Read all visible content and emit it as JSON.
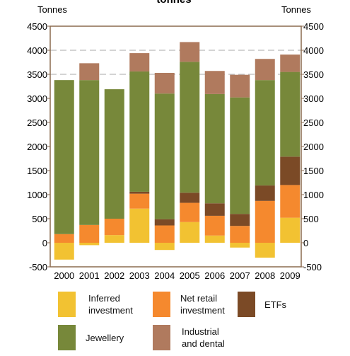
{
  "chart_data": {
    "type": "bar",
    "stacked": true,
    "title": "tonnes",
    "ylabel_left": "Tonnes",
    "ylabel_right": "Tonnes",
    "ylim": [
      -500,
      4500
    ],
    "yticks": [
      -500,
      0,
      500,
      1000,
      1500,
      2000,
      2500,
      3000,
      3500,
      4000,
      4500
    ],
    "dashed_gridlines": [
      3500,
      4000
    ],
    "categories": [
      "2000",
      "2001",
      "2002",
      "2003",
      "2004",
      "2005",
      "2006",
      "2007",
      "2008",
      "2009"
    ],
    "series": [
      {
        "name": "Inferred investment",
        "color": "#f2c232",
        "values": [
          -350,
          -50,
          160,
          710,
          -150,
          430,
          150,
          -100,
          -310,
          520
        ]
      },
      {
        "name": "Net retail investment",
        "color": "#f5892e",
        "values": [
          180,
          370,
          340,
          310,
          360,
          400,
          410,
          350,
          870,
          680
        ]
      },
      {
        "name": "ETFs",
        "color": "#7b4a26",
        "values": [
          0,
          0,
          0,
          40,
          130,
          210,
          260,
          250,
          320,
          590
        ]
      },
      {
        "name": "Jewellery",
        "color": "#77883a",
        "values": [
          3200,
          3010,
          2690,
          2500,
          2610,
          2720,
          2270,
          2420,
          2190,
          1760
        ]
      },
      {
        "name": "Industrial and dental",
        "color": "#b07a5e",
        "values": [
          0,
          350,
          0,
          380,
          430,
          410,
          480,
          470,
          440,
          360
        ]
      }
    ],
    "legend_position": "bottom"
  },
  "legend": [
    {
      "label": "Inferred\ninvestment",
      "color": "#f2c232"
    },
    {
      "label": "Net retail\ninvestment",
      "color": "#f5892e"
    },
    {
      "label": "ETFs",
      "color": "#7b4a26"
    },
    {
      "label": "Jewellery",
      "color": "#77883a"
    },
    {
      "label": "Industrial\nand dental",
      "color": "#b07a5e"
    }
  ]
}
